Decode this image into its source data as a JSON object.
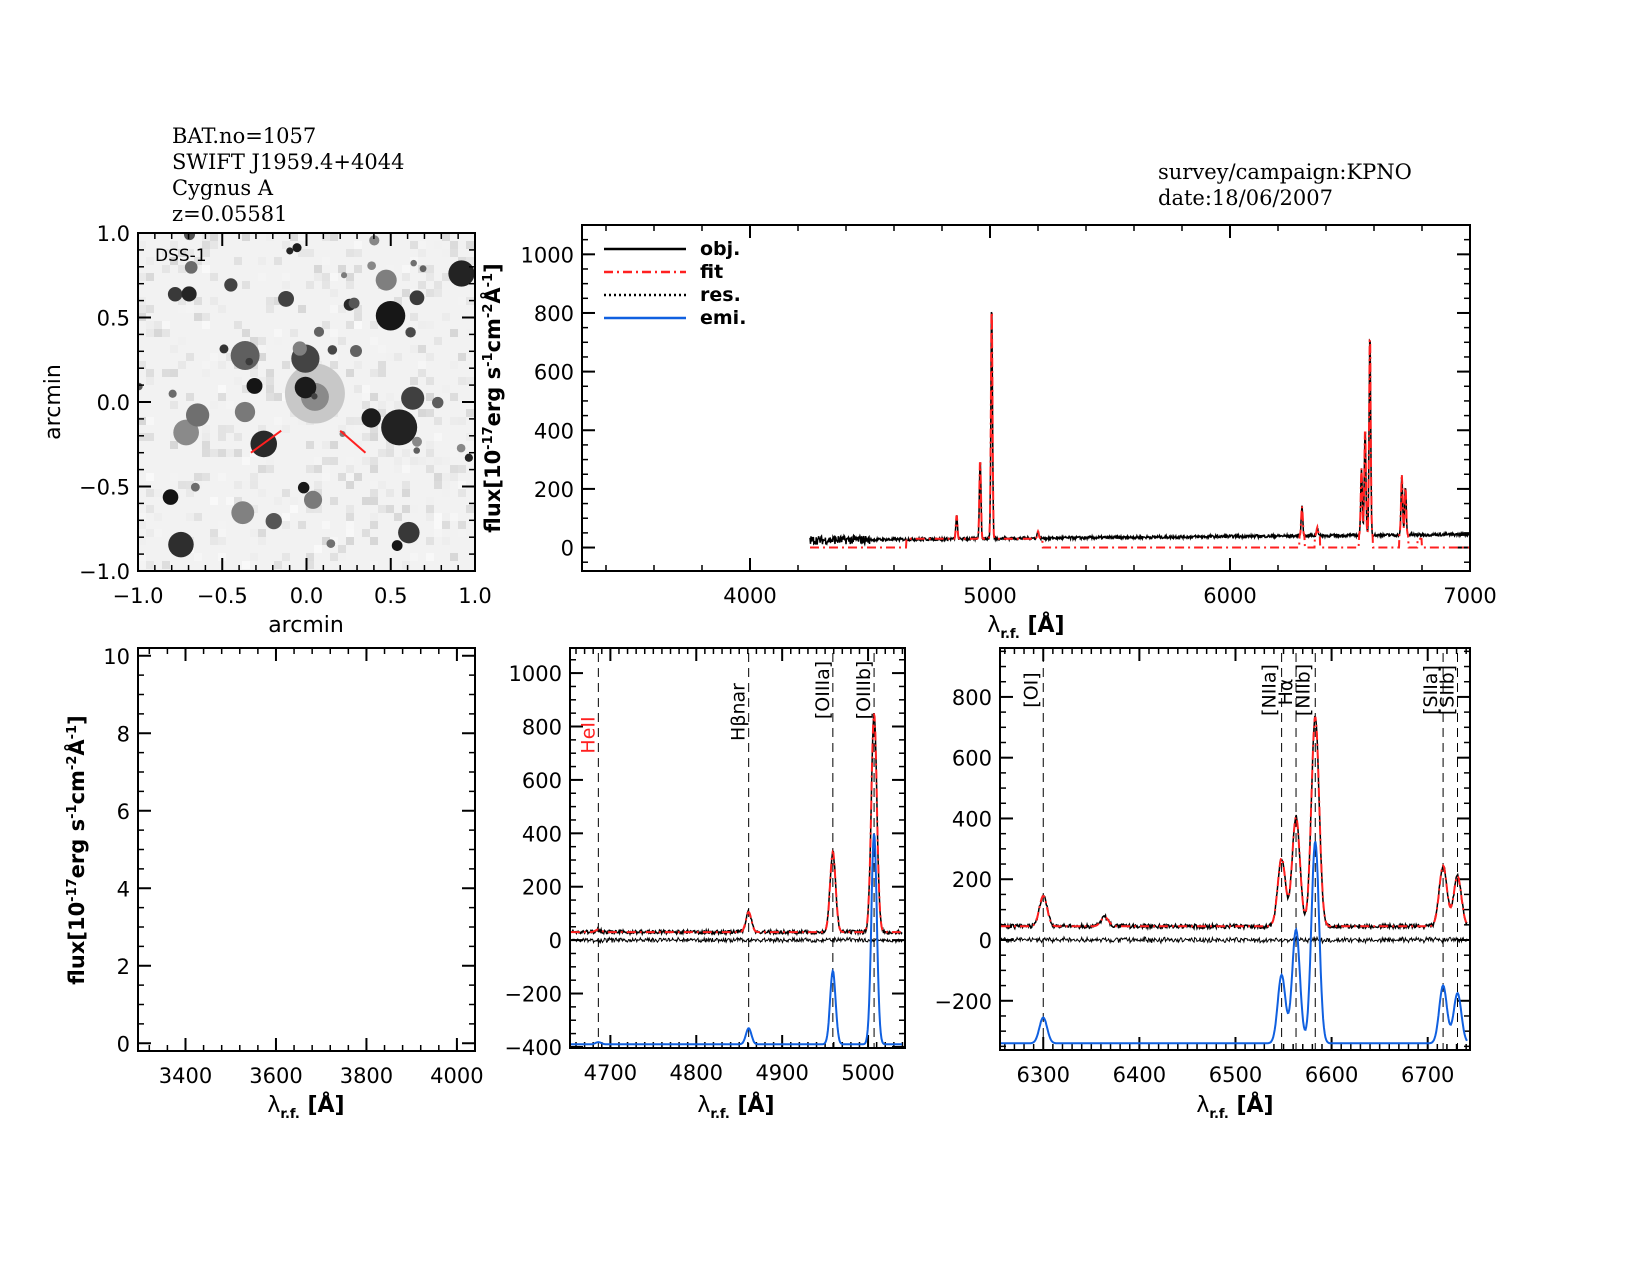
{
  "header": {
    "bat_no": "BAT.no=1057",
    "swift_name": "SWIFT J1959.4+4044",
    "object_name": "Cygnus A",
    "redshift": "z=0.05581",
    "survey": "survey/campaign:KPNO",
    "date": "date:18/06/2007"
  },
  "colors": {
    "obj": "#000000",
    "fit": "#ff2020",
    "res": "#000000",
    "emi": "#1060e0",
    "marker": "#ff2020"
  },
  "chart_data": [
    {
      "id": "image",
      "type": "heatmap",
      "label": "DSS-1",
      "xlabel": "arcmin",
      "ylabel": "arcmin",
      "xlim": [
        -1.0,
        1.0
      ],
      "ylim": [
        -1.0,
        1.0
      ],
      "xticks": [
        "-1.0",
        "-0.5",
        "0.0",
        "0.5",
        "1.0"
      ],
      "yticks": [
        "-1.0",
        "-0.5",
        "0.0",
        "0.5",
        "1.0"
      ],
      "colormap": "inverted greyscale"
    },
    {
      "id": "full",
      "type": "line",
      "xlabel": "λr.f. [Å]",
      "ylabel": "flux[10^-17 erg s^-1 cm^-2 Å^-1]",
      "xlim": [
        3300,
        7000
      ],
      "ylim": [
        -80,
        1100
      ],
      "xticks": [
        4000,
        5000,
        6000,
        7000
      ],
      "yticks": [
        0,
        200,
        400,
        600,
        800,
        1000
      ],
      "legend": {
        "position": "top-left",
        "entries": [
          "obj.",
          "fit",
          "res.",
          "emi."
        ]
      },
      "spectrum_range": [
        4250,
        7000
      ],
      "continuum": [
        25,
        45
      ],
      "lines": [
        {
          "wave": 4861,
          "peak": 110
        },
        {
          "wave": 4959,
          "peak": 300
        },
        {
          "wave": 5007,
          "peak": 840
        },
        {
          "wave": 5200,
          "peak": 55
        },
        {
          "wave": 6300,
          "peak": 140
        },
        {
          "wave": 6364,
          "peak": 70
        },
        {
          "wave": 6548,
          "peak": 270
        },
        {
          "wave": 6563,
          "peak": 410
        },
        {
          "wave": 6583,
          "peak": 740
        },
        {
          "wave": 6716,
          "peak": 250
        },
        {
          "wave": 6731,
          "peak": 210
        }
      ]
    },
    {
      "id": "blue",
      "type": "line",
      "xlabel": "λr.f. [Å]",
      "ylabel": "flux[10^-17 erg s^-1 cm^-2 Å^-1]",
      "xlim": [
        3295,
        4040
      ],
      "ylim": [
        -0.2,
        10.2
      ],
      "xticks": [
        3400,
        3600,
        3800,
        4000
      ],
      "yticks": [
        0,
        2,
        4,
        6,
        8,
        10
      ]
    },
    {
      "id": "hbeta",
      "type": "line",
      "xlabel": "λr.f. [Å]",
      "xlim": [
        4653,
        5043
      ],
      "ylim": [
        -404,
        1094
      ],
      "xticks": [
        4700,
        4800,
        4900,
        5000
      ],
      "yticks": [
        -400,
        -200,
        0,
        200,
        400,
        600,
        800,
        1000
      ],
      "continuum": 30,
      "emi_offset": -390,
      "lines": [
        {
          "name": "HeII",
          "wave": 4686,
          "obj_peak": 10,
          "emi_peak": 8,
          "label_color": "#ff2020"
        },
        {
          "name": "Hβnar",
          "wave": 4861,
          "obj_peak": 75,
          "emi_peak": 60,
          "label_color": "#000000"
        },
        {
          "name": "[OIIIa]",
          "wave": 4959,
          "obj_peak": 300,
          "emi_peak": 275,
          "label_color": "#000000"
        },
        {
          "name": "[OIIIb]",
          "wave": 5007,
          "obj_peak": 820,
          "emi_peak": 790,
          "label_color": "#000000"
        }
      ]
    },
    {
      "id": "halpha",
      "type": "line",
      "xlabel": "λr.f. [Å]",
      "xlim": [
        6255,
        6744
      ],
      "ylim": [
        -362,
        961
      ],
      "xticks": [
        6300,
        6400,
        6500,
        6600,
        6700
      ],
      "yticks": [
        -200,
        0,
        200,
        400,
        600,
        800
      ],
      "continuum": 45,
      "emi_offset": -340,
      "lines": [
        {
          "name": "[OI]",
          "wave": 6300,
          "obj_peak": 100,
          "emi_peak": 85
        },
        {
          "name": "[NIIa]",
          "wave": 6548,
          "obj_peak": 225,
          "emi_peak": 225
        },
        {
          "name": "Hα",
          "wave": 6563,
          "obj_peak": 360,
          "emi_peak": 375
        },
        {
          "name": "[NIIb]",
          "wave": 6583,
          "obj_peak": 690,
          "emi_peak": 665
        },
        {
          "name": "[SIIa]",
          "wave": 6716,
          "obj_peak": 200,
          "emi_peak": 190
        },
        {
          "name": "[SIIb]",
          "wave": 6731,
          "obj_peak": 165,
          "emi_peak": 165
        }
      ],
      "extra_obj_lines": [
        {
          "wave": 6364,
          "obj_peak": 30
        }
      ]
    }
  ]
}
